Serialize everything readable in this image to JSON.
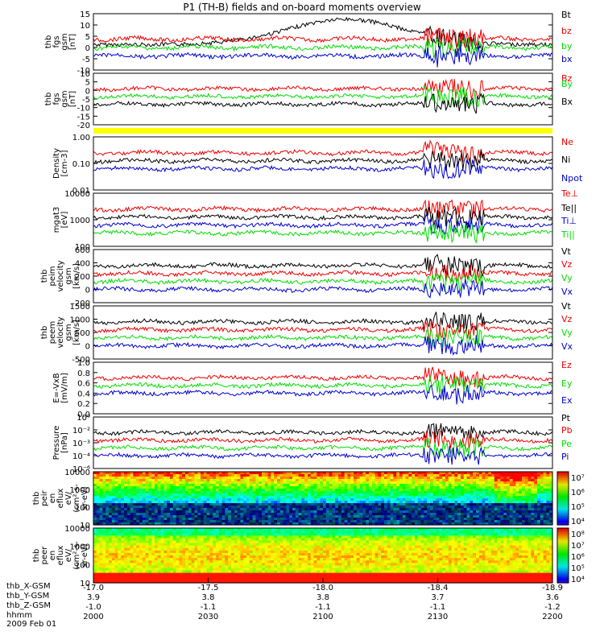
{
  "title": "P1 (TH-B) fields and on-board moments overview",
  "colors": {
    "black": "#000000",
    "red": "#ee0000",
    "green": "#00dd00",
    "blue": "#0000cc",
    "yellow": "#ffff00"
  },
  "chart_data": [
    {
      "id": "fgs_gsm",
      "type": "line",
      "ylabel": [
        "thb",
        "fgs",
        "gsm",
        "[nT]"
      ],
      "ylim": [
        -10,
        15
      ],
      "ticks": [
        "15",
        "10",
        "5",
        "0",
        "-5",
        "-10"
      ],
      "series": [
        {
          "name": "Bt",
          "color": "black"
        },
        {
          "name": "bz",
          "color": "red"
        },
        {
          "name": "by",
          "color": "green"
        },
        {
          "name": "bx",
          "color": "blue"
        }
      ]
    },
    {
      "id": "fgs_dsl",
      "type": "line",
      "ylabel": [
        "thb",
        "fgs",
        "gsm",
        "[nT]"
      ],
      "ylim": [
        -20,
        10
      ],
      "ticks": [
        "10",
        "5",
        "0",
        "-5",
        "-10",
        "-15",
        "-20"
      ],
      "series": [
        {
          "name": "Bz",
          "color": "red"
        },
        {
          "name": "By",
          "color": "green"
        },
        {
          "name": "Bx",
          "color": "black"
        }
      ]
    },
    {
      "id": "density",
      "type": "line",
      "log": true,
      "ylabel": [
        "Density",
        "[cm-3]"
      ],
      "ylim": [
        0.01,
        1.5
      ],
      "ticks": [
        "1.00",
        "0.10",
        "0.01"
      ],
      "series": [
        {
          "name": "Ne",
          "color": "red"
        },
        {
          "name": "Ni",
          "color": "black"
        },
        {
          "name": "Npot",
          "color": "blue"
        }
      ]
    },
    {
      "id": "temp",
      "type": "line",
      "log": true,
      "ylabel": [
        "mgat3",
        "[eV]"
      ],
      "ylim": [
        100,
        15000
      ],
      "ticks": [
        "10000",
        "1000",
        "100"
      ],
      "series": [
        {
          "name": "Te⊥",
          "color": "red"
        },
        {
          "name": "Te||",
          "color": "black"
        },
        {
          "name": "Ti⊥",
          "color": "blue"
        },
        {
          "name": "Ti||",
          "color": "green"
        }
      ]
    },
    {
      "id": "peim",
      "type": "line",
      "ylabel": [
        "thb",
        "peim",
        "velocity",
        "gsm",
        "[km/s]"
      ],
      "ylim": [
        -200,
        700
      ],
      "ticks": [
        "600",
        "400",
        "200",
        "0",
        "-200"
      ],
      "series": [
        {
          "name": "Vt",
          "color": "black"
        },
        {
          "name": "Vz",
          "color": "red"
        },
        {
          "name": "Vy",
          "color": "green"
        },
        {
          "name": "Vx",
          "color": "blue"
        }
      ]
    },
    {
      "id": "peem",
      "type": "line",
      "ylabel": [
        "thb",
        "peem",
        "velocity",
        "gsm",
        "[km/s]"
      ],
      "ylim": [
        -500,
        1500
      ],
      "ticks": [
        "1500",
        "1000",
        "500",
        "0",
        "-500"
      ],
      "series": [
        {
          "name": "Vt",
          "color": "black"
        },
        {
          "name": "Vz",
          "color": "red"
        },
        {
          "name": "Vy",
          "color": "green"
        },
        {
          "name": "Vx",
          "color": "blue"
        }
      ]
    },
    {
      "id": "efield",
      "type": "line",
      "ylabel": [
        "E=-VxB",
        "[mV/m]"
      ],
      "ylim": [
        0,
        1
      ],
      "ticks": [
        "1.0",
        "0.8",
        "0.6",
        "0.4",
        "0.2",
        "0.0"
      ],
      "series": [
        {
          "name": "Ez",
          "color": "red"
        },
        {
          "name": "Ey",
          "color": "green"
        },
        {
          "name": "Ex",
          "color": "blue"
        }
      ]
    },
    {
      "id": "pressure",
      "type": "line",
      "log": true,
      "ylabel": [
        "Pressure",
        "[nPa]"
      ],
      "ylim": [
        1e-06,
        0.15
      ],
      "ticks": [
        "10⁰",
        "10⁻²",
        "10⁻³",
        "10⁻⁴",
        "10⁻⁶"
      ],
      "series": [
        {
          "name": "Pt",
          "color": "black"
        },
        {
          "name": "Pb",
          "color": "red"
        },
        {
          "name": "Pe",
          "color": "green"
        },
        {
          "name": "Pi",
          "color": "blue"
        }
      ]
    },
    {
      "id": "peir",
      "type": "heatmap",
      "ylabel": [
        "thb",
        "peir",
        "en",
        "eflux",
        "eV/",
        "(cm²-s-",
        "sr-eV)"
      ],
      "ylim": [
        10,
        20000
      ],
      "ticks": [
        "10000",
        "1000",
        "100",
        "10"
      ],
      "colorbar": [
        "10⁷",
        "10⁶",
        "10⁵",
        "10⁴"
      ]
    },
    {
      "id": "peer",
      "type": "heatmap",
      "ylabel": [
        "thb",
        "peer",
        "en",
        "eflux",
        "eV/",
        "(cm²-s-",
        "sr-eV)"
      ],
      "ylim": [
        10,
        20000
      ],
      "ticks": [
        "10000",
        "1000",
        "100",
        "10"
      ],
      "colorbar": [
        "10⁸",
        "10⁷",
        "10⁶",
        "10⁵",
        "10⁴"
      ]
    }
  ],
  "xaxis": {
    "columns": [
      {
        "x": "-17.0",
        "y": "3.9",
        "z": "-1.0",
        "hhmm": "2000"
      },
      {
        "x": "-17.5",
        "y": "3.8",
        "z": "-1.1",
        "hhmm": "2030"
      },
      {
        "x": "-18.0",
        "y": "3.8",
        "z": "-1.1",
        "hhmm": "2100"
      },
      {
        "x": "-18.4",
        "y": "3.7",
        "z": "-1.1",
        "hhmm": "2130"
      },
      {
        "x": "-18.9",
        "y": "3.6",
        "z": "-1.2",
        "hhmm": "2200"
      }
    ]
  },
  "footer": {
    "x_label": "thb_X-GSM",
    "y_label": "thb_Y-GSM",
    "z_label": "thb_Z-GSM",
    "time_label": "hhmm",
    "date": "2009 Feb 01"
  }
}
